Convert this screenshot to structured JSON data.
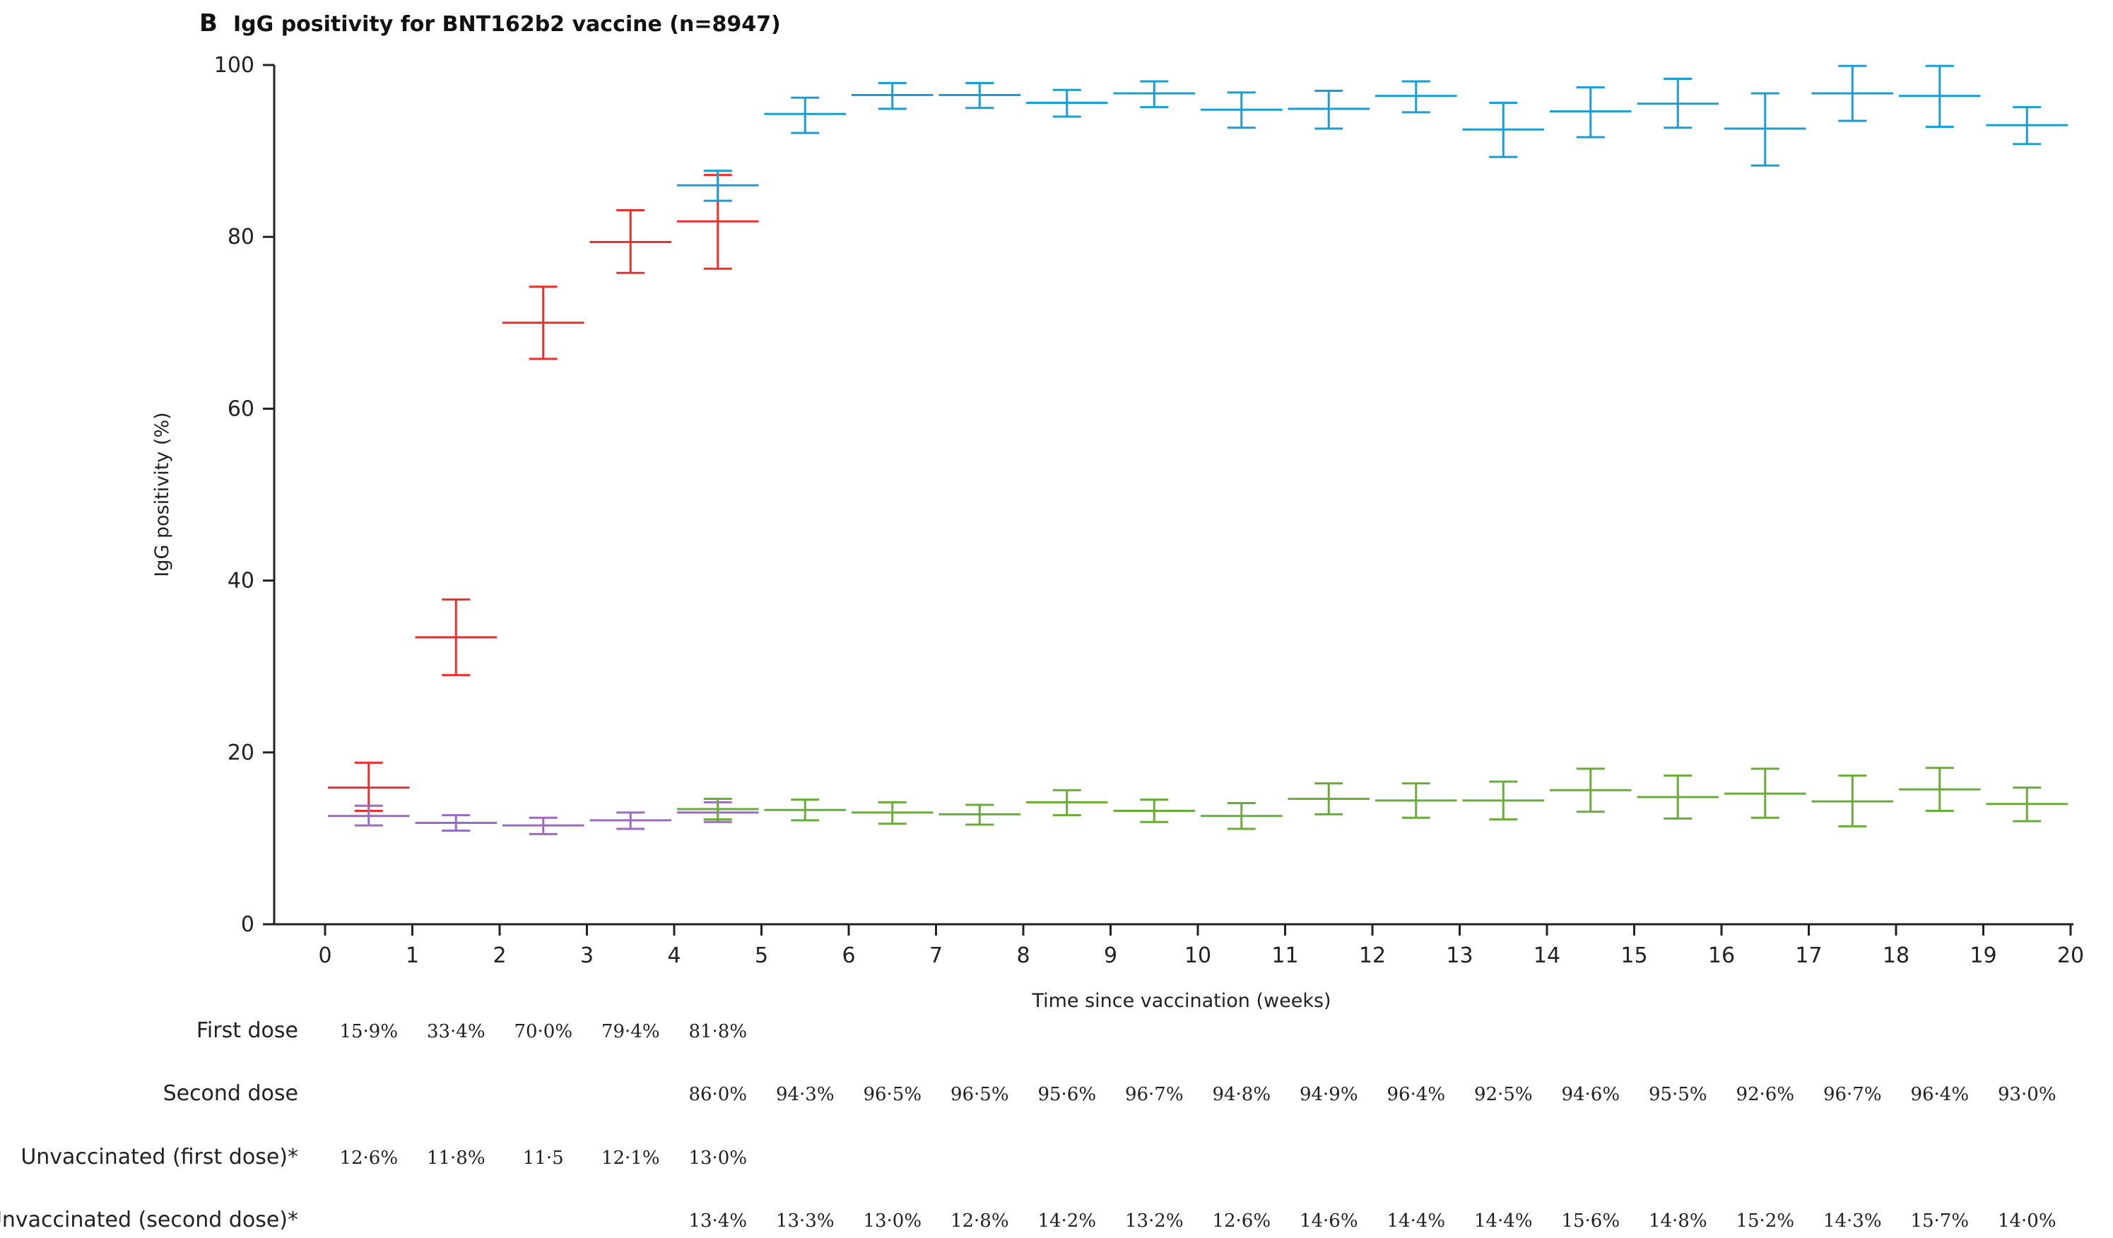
{
  "panel_letter": "B",
  "chart_data": {
    "type": "scatter",
    "title": "IgG positivity for BNT162b2 vaccine (n=8947)",
    "xlabel": "Time since vaccination (weeks)",
    "ylabel": "IgG positivity (%)",
    "xlim": [
      0,
      20
    ],
    "ylim": [
      0,
      100
    ],
    "xticks": [
      "0",
      "1",
      "2",
      "3",
      "4",
      "5",
      "6",
      "7",
      "8",
      "9",
      "10",
      "11",
      "12",
      "13",
      "14",
      "15",
      "16",
      "17",
      "18",
      "19",
      "20"
    ],
    "yticks": [
      "0",
      "20",
      "40",
      "60",
      "80",
      "100"
    ],
    "grid": false,
    "series": [
      {
        "name": "First dose",
        "color": "#e8312f",
        "x": [
          0.5,
          1.5,
          2.5,
          3.5,
          4.5
        ],
        "y": [
          15.9,
          33.4,
          70.0,
          79.4,
          81.8
        ],
        "lower": [
          13.2,
          29.0,
          65.8,
          75.8,
          76.3
        ],
        "upper": [
          18.8,
          37.8,
          74.2,
          83.1,
          87.2
        ],
        "labels": [
          "15·9%",
          "33·4%",
          "70·0%",
          "79·4%",
          "81·8%"
        ]
      },
      {
        "name": "Second dose",
        "color": "#1a9dd1",
        "x": [
          4.5,
          5.5,
          6.5,
          7.5,
          8.5,
          9.5,
          10.5,
          11.5,
          12.5,
          13.5,
          14.5,
          15.5,
          16.5,
          17.5,
          18.5,
          19.5
        ],
        "y": [
          86.0,
          94.3,
          96.5,
          96.5,
          95.6,
          96.7,
          94.8,
          94.9,
          96.4,
          92.5,
          94.6,
          95.5,
          92.6,
          96.7,
          96.4,
          93.0
        ],
        "lower": [
          84.2,
          92.1,
          94.9,
          95.0,
          94.0,
          95.1,
          92.7,
          92.6,
          94.5,
          89.3,
          91.6,
          92.7,
          88.3,
          93.5,
          92.8,
          90.8
        ],
        "upper": [
          87.7,
          96.2,
          97.9,
          97.9,
          97.1,
          98.1,
          96.8,
          97.0,
          98.1,
          95.6,
          97.4,
          98.4,
          96.7,
          99.9,
          99.9,
          95.1
        ],
        "labels": [
          "86·0%",
          "94·3%",
          "96·5%",
          "96·5%",
          "95·6%",
          "96·7%",
          "94·8%",
          "94·9%",
          "96·4%",
          "92·5%",
          "94·6%",
          "95·5%",
          "92·6%",
          "96·7%",
          "96·4%",
          "93·0%"
        ]
      },
      {
        "name": "Unvaccinated (first dose)*",
        "color": "#9b6bc1",
        "x": [
          0.5,
          1.5,
          2.5,
          3.5,
          4.5
        ],
        "y": [
          12.6,
          11.8,
          11.5,
          12.1,
          13.0
        ],
        "lower": [
          11.5,
          10.9,
          10.5,
          11.1,
          11.9
        ],
        "upper": [
          13.8,
          12.7,
          12.4,
          13.0,
          14.2
        ],
        "labels": [
          "12·6%",
          "11·8%",
          "11·5",
          "12·1%",
          "13·0%"
        ]
      },
      {
        "name": "Unvaccinated (second dose)*",
        "color": "#6aab3a",
        "x": [
          4.5,
          5.5,
          6.5,
          7.5,
          8.5,
          9.5,
          10.5,
          11.5,
          12.5,
          13.5,
          14.5,
          15.5,
          16.5,
          17.5,
          18.5,
          19.5
        ],
        "y": [
          13.4,
          13.3,
          13.0,
          12.8,
          14.2,
          13.2,
          12.6,
          14.6,
          14.4,
          14.4,
          15.6,
          14.8,
          15.2,
          14.3,
          15.7,
          14.0
        ],
        "lower": [
          12.2,
          12.1,
          11.7,
          11.6,
          12.7,
          11.9,
          11.1,
          12.8,
          12.4,
          12.2,
          13.1,
          12.3,
          12.4,
          11.4,
          13.2,
          12.0
        ],
        "upper": [
          14.6,
          14.5,
          14.2,
          13.9,
          15.6,
          14.5,
          14.1,
          16.4,
          16.4,
          16.6,
          18.1,
          17.3,
          18.1,
          17.3,
          18.2,
          15.9
        ],
        "labels": [
          "13·4%",
          "13·3%",
          "13·0%",
          "12·8%",
          "14·2%",
          "13·2%",
          "12·6%",
          "14·6%",
          "14·4%",
          "14·4%",
          "15·6%",
          "14·8%",
          "15·2%",
          "14·3%",
          "15·7%",
          "14·0%"
        ]
      }
    ]
  }
}
